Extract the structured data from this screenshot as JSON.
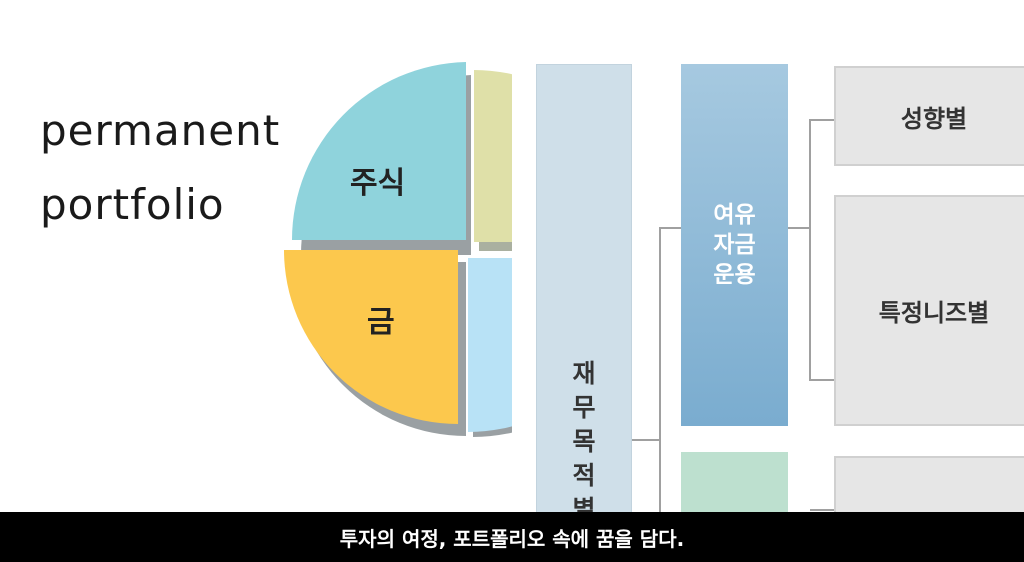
{
  "title": {
    "line1": "permanent",
    "line2": "portfolio"
  },
  "pie": {
    "slices": [
      {
        "label": "주식",
        "color": "#8fd3dc"
      },
      {
        "label": "",
        "color": "#dfe0a8"
      },
      {
        "label": "금",
        "color": "#fcc84d"
      },
      {
        "label": "",
        "color": "#b8e2f6"
      }
    ],
    "shadow_color": "#9aa0a3"
  },
  "diagram": {
    "vertical_chars": [
      "재",
      "무",
      "목",
      "적",
      "별"
    ],
    "spare_fund_lines": [
      "여유",
      "자금",
      "운용"
    ],
    "categories": [
      "성향별",
      "특정니즈별",
      ""
    ],
    "colors": {
      "vertical_box": "#cfdfe9",
      "spare_fund": "#8fb9d8",
      "green_box": "#bde0cf",
      "category_box": "#e6e6e6",
      "connector": "#a0a0a0"
    }
  },
  "caption": "투자의 여정, 포트폴리오 속에 꿈을 담다."
}
